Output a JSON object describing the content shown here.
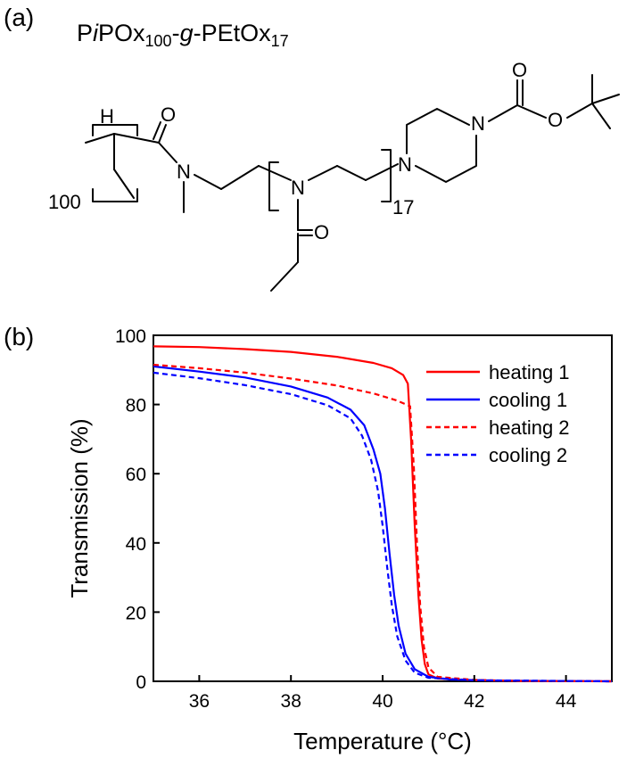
{
  "panels": {
    "a_label": "(a)",
    "b_label": "(b)"
  },
  "structure": {
    "formula": {
      "prefix": "P",
      "italic_i": "i",
      "pox": "POx",
      "sub1": "100",
      "dash1": "-",
      "g": "g",
      "dash2": "-PEtOx",
      "sub2": "17"
    },
    "atoms": {
      "H": "H",
      "O_amide": "O",
      "N_amide": "N",
      "N_repeat": "N",
      "O_side": "O",
      "N_pip1": "N",
      "N_pip2": "N",
      "O_carbonyl": "O",
      "O_ester": "O"
    },
    "repeat_100": "100",
    "repeat_17": "17"
  },
  "chart_data": {
    "type": "line",
    "xlabel": "Temperature (°C)",
    "ylabel": "Transmission (%)",
    "xlim": [
      35,
      45
    ],
    "ylim": [
      0,
      100
    ],
    "xticks": [
      36,
      38,
      40,
      42,
      44
    ],
    "yticks": [
      0,
      20,
      40,
      60,
      80,
      100
    ],
    "legend_position": "top-right",
    "series": [
      {
        "name": "heating 1",
        "color": "#ff0000",
        "dash": "solid",
        "points": [
          [
            35,
            96.8
          ],
          [
            36,
            96.6
          ],
          [
            37,
            96.0
          ],
          [
            38,
            95.2
          ],
          [
            39,
            93.8
          ],
          [
            39.8,
            92.0
          ],
          [
            40.2,
            90.5
          ],
          [
            40.45,
            88.5
          ],
          [
            40.55,
            86.0
          ],
          [
            40.62,
            70
          ],
          [
            40.7,
            45
          ],
          [
            40.78,
            25
          ],
          [
            40.85,
            12
          ],
          [
            40.92,
            5
          ],
          [
            41.0,
            2
          ],
          [
            41.2,
            0.8
          ],
          [
            42,
            0.3
          ],
          [
            43,
            0.1
          ],
          [
            45,
            0
          ]
        ]
      },
      {
        "name": "cooling 1",
        "color": "#0000ff",
        "dash": "solid",
        "points": [
          [
            35,
            91.0
          ],
          [
            36,
            89.5
          ],
          [
            37,
            87.8
          ],
          [
            38,
            85.2
          ],
          [
            38.8,
            82.0
          ],
          [
            39.3,
            78.5
          ],
          [
            39.6,
            74
          ],
          [
            39.8,
            67
          ],
          [
            39.95,
            60
          ],
          [
            40.05,
            50
          ],
          [
            40.15,
            37
          ],
          [
            40.25,
            25
          ],
          [
            40.35,
            16
          ],
          [
            40.5,
            8
          ],
          [
            40.7,
            3.5
          ],
          [
            41.0,
            1.3
          ],
          [
            41.5,
            0.5
          ],
          [
            42.5,
            0.2
          ],
          [
            45,
            0
          ]
        ]
      },
      {
        "name": "heating 2",
        "color": "#ff0000",
        "dash": "dashed",
        "points": [
          [
            35,
            91.5
          ],
          [
            36,
            90.5
          ],
          [
            37,
            89.2
          ],
          [
            38,
            87.5
          ],
          [
            39,
            85.5
          ],
          [
            39.8,
            83.2
          ],
          [
            40.3,
            81.2
          ],
          [
            40.6,
            79.5
          ],
          [
            40.68,
            62
          ],
          [
            40.75,
            40
          ],
          [
            40.82,
            22
          ],
          [
            40.9,
            10
          ],
          [
            41.0,
            4
          ],
          [
            41.2,
            1.3
          ],
          [
            42,
            0.4
          ],
          [
            43,
            0.1
          ],
          [
            45,
            0
          ]
        ]
      },
      {
        "name": "cooling 2",
        "color": "#0000ff",
        "dash": "dashed",
        "points": [
          [
            35,
            89.2
          ],
          [
            36,
            87.6
          ],
          [
            37,
            85.6
          ],
          [
            38,
            83.0
          ],
          [
            38.8,
            79.8
          ],
          [
            39.3,
            76
          ],
          [
            39.55,
            71
          ],
          [
            39.75,
            64
          ],
          [
            39.9,
            55
          ],
          [
            40.0,
            45
          ],
          [
            40.1,
            33
          ],
          [
            40.2,
            22
          ],
          [
            40.32,
            13
          ],
          [
            40.5,
            6
          ],
          [
            40.7,
            2.5
          ],
          [
            41.0,
            1
          ],
          [
            42,
            0.3
          ],
          [
            45,
            0
          ]
        ]
      }
    ]
  }
}
